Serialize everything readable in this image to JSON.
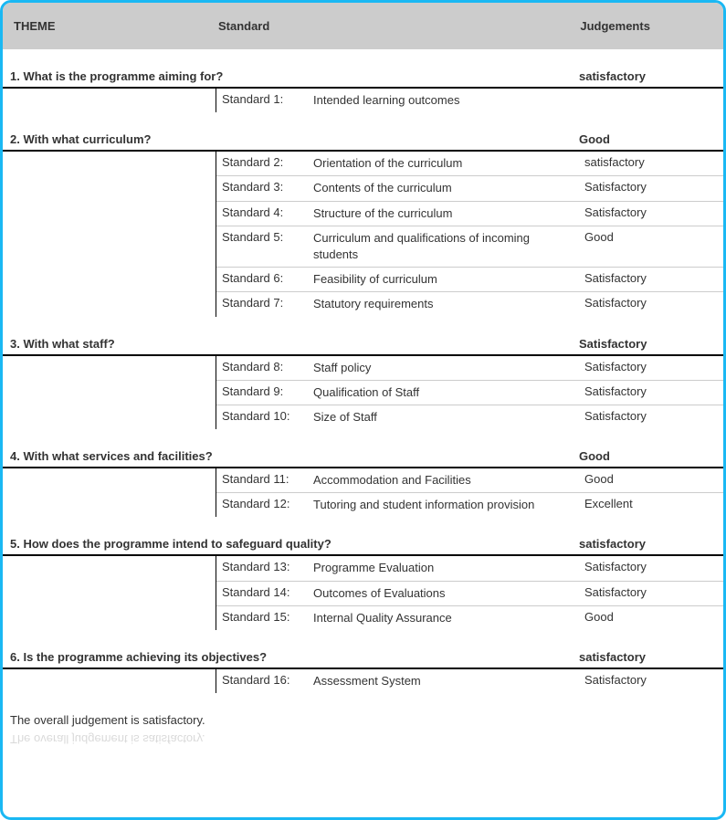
{
  "colors": {
    "frame_border": "#1ab8f3",
    "header_bg": "#cccccc",
    "text": "#333333",
    "row_border": "#cccccc",
    "theme_border": "#000000"
  },
  "header": {
    "theme": "THEME",
    "standard": "Standard",
    "judgements": "Judgements"
  },
  "themes": [
    {
      "title": "1. What is the programme aiming for?",
      "judgement": "satisfactory",
      "standards": [
        {
          "num": "Standard 1:",
          "desc": "Intended learning outcomes",
          "judge": ""
        }
      ]
    },
    {
      "title": "2. With what curriculum?",
      "judgement": "Good",
      "standards": [
        {
          "num": "Standard 2:",
          "desc": "Orientation of the curriculum",
          "judge": "satisfactory"
        },
        {
          "num": "Standard 3:",
          "desc": "Contents of the curriculum",
          "judge": "Satisfactory"
        },
        {
          "num": "Standard 4:",
          "desc": "Structure of the curriculum",
          "judge": "Satisfactory"
        },
        {
          "num": "Standard 5:",
          "desc": "Curriculum and qualifications of incoming students",
          "judge": "Good"
        },
        {
          "num": "Standard 6:",
          "desc": "Feasibility of curriculum",
          "judge": "Satisfactory"
        },
        {
          "num": "Standard 7:",
          "desc": "Statutory requirements",
          "judge": "Satisfactory"
        }
      ]
    },
    {
      "title": "3. With what staff?",
      "judgement": "Satisfactory",
      "standards": [
        {
          "num": "Standard 8:",
          "desc": "Staff policy",
          "judge": "Satisfactory"
        },
        {
          "num": "Standard 9:",
          "desc": "Qualification of Staff",
          "judge": "Satisfactory"
        },
        {
          "num": "Standard 10:",
          "desc": "Size of Staff",
          "judge": "Satisfactory"
        }
      ]
    },
    {
      "title": "4. With what services and facilities?",
      "judgement": "Good",
      "standards": [
        {
          "num": "Standard 11:",
          "desc": "Accommodation and Facilities",
          "judge": "Good"
        },
        {
          "num": "Standard 12:",
          "desc": "Tutoring and student information provision",
          "judge": "Excellent"
        }
      ]
    },
    {
      "title": "5. How does the programme intend to safeguard quality?",
      "judgement": "satisfactory",
      "standards": [
        {
          "num": "Standard 13:",
          "desc": "Programme Evaluation",
          "judge": "Satisfactory"
        },
        {
          "num": "Standard 14:",
          "desc": "Outcomes of Evaluations",
          "judge": "Satisfactory"
        },
        {
          "num": "Standard 15:",
          "desc": "Internal Quality Assurance",
          "judge": "Good"
        }
      ]
    },
    {
      "title": "6. Is the programme achieving its objectives?",
      "judgement": "satisfactory",
      "standards": [
        {
          "num": "Standard 16:",
          "desc": "Assessment System",
          "judge": "Satisfactory"
        }
      ]
    }
  ],
  "overall": "The overall judgement is satisfactory."
}
